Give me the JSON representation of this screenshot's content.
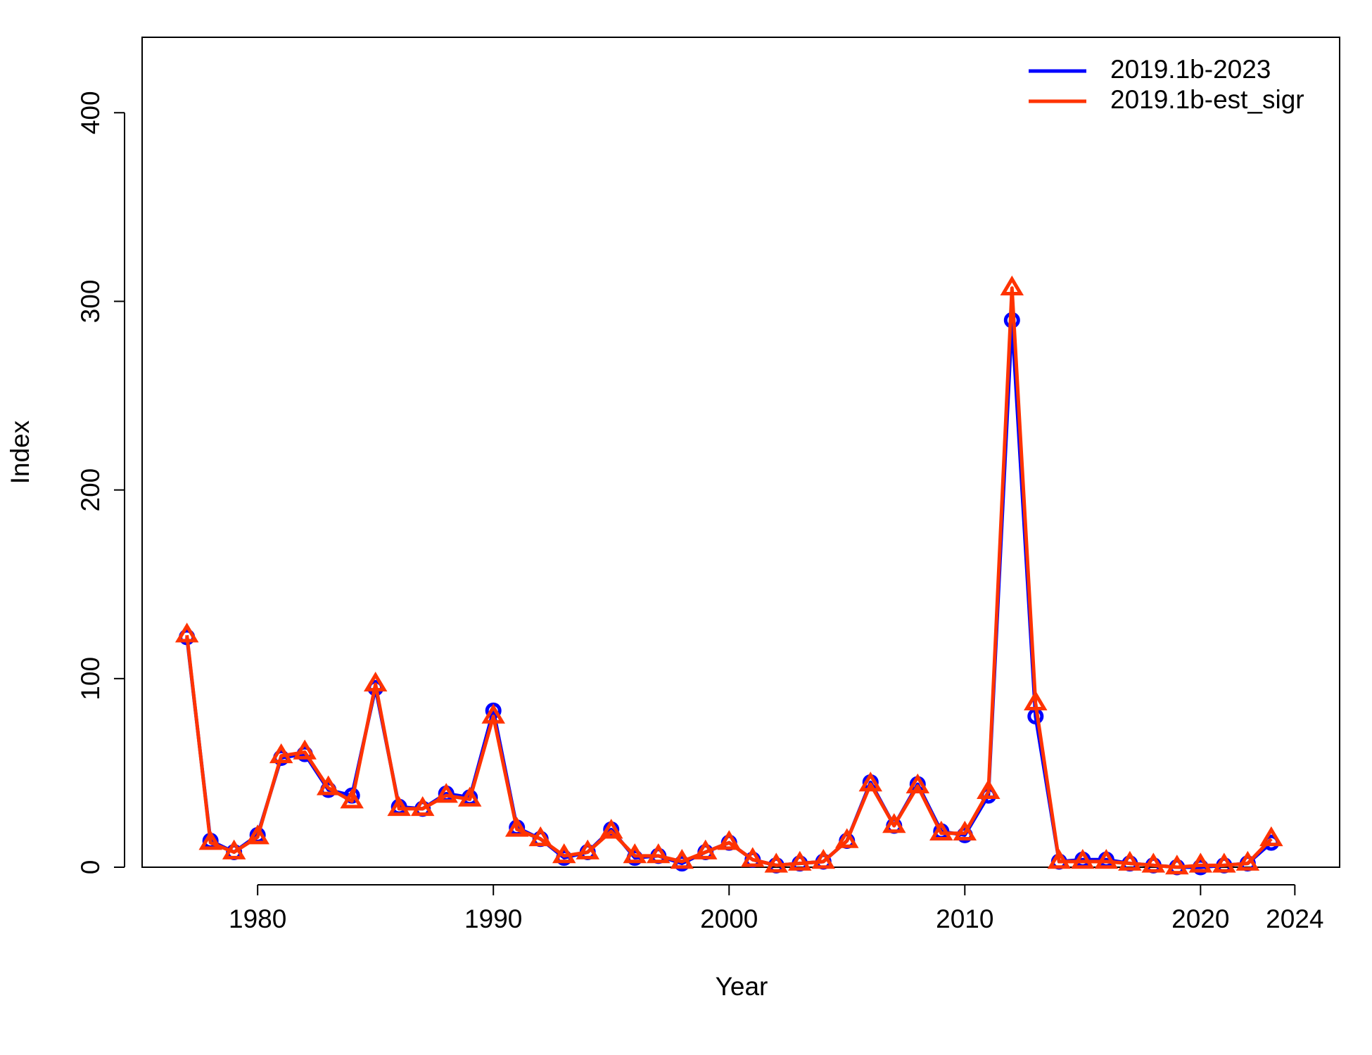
{
  "chart_data": {
    "type": "line",
    "x_label": "Year",
    "y_label": "Index",
    "x": [
      1977,
      1978,
      1979,
      1980,
      1981,
      1982,
      1983,
      1984,
      1985,
      1986,
      1987,
      1988,
      1989,
      1990,
      1991,
      1992,
      1993,
      1994,
      1995,
      1996,
      1997,
      1998,
      1999,
      2000,
      2001,
      2002,
      2003,
      2004,
      2005,
      2006,
      2007,
      2008,
      2009,
      2010,
      2011,
      2012,
      2013,
      2014,
      2015,
      2016,
      2017,
      2018,
      2019,
      2020,
      2021,
      2022,
      2023
    ],
    "series": [
      {
        "name": "2019.1b-2023",
        "color": "#0000ff",
        "marker": "circle",
        "values": [
          122,
          14,
          8,
          17,
          58,
          60,
          41,
          38,
          95,
          32,
          31,
          39,
          37,
          83,
          21,
          15,
          5,
          8,
          20,
          5,
          6,
          2,
          8,
          13,
          4,
          1,
          2,
          3,
          14,
          45,
          22,
          44,
          19,
          17,
          38,
          290,
          80,
          3,
          4,
          4,
          2,
          1,
          0,
          0,
          1,
          2,
          13
        ]
      },
      {
        "name": "2019.1b-est_sigr",
        "color": "#ff3300",
        "marker": "triangle",
        "values": [
          123,
          13,
          8,
          16,
          59,
          61,
          42,
          35,
          97,
          31,
          31,
          38,
          36,
          80,
          20,
          15,
          6,
          8,
          19,
          6,
          6,
          3,
          8,
          13,
          4,
          1,
          2,
          3,
          14,
          44,
          22,
          43,
          18,
          18,
          40,
          307,
          87,
          3,
          3,
          3,
          2,
          1,
          0,
          1,
          1,
          2,
          15
        ]
      }
    ],
    "xlim": [
      1975.1,
      2025.9
    ],
    "xticks": [
      1980,
      1990,
      2000,
      2010,
      2020,
      2024
    ],
    "ylim": [
      0,
      440
    ],
    "yticks": [
      0,
      100,
      200,
      300,
      400
    ],
    "legend": "top-right"
  }
}
